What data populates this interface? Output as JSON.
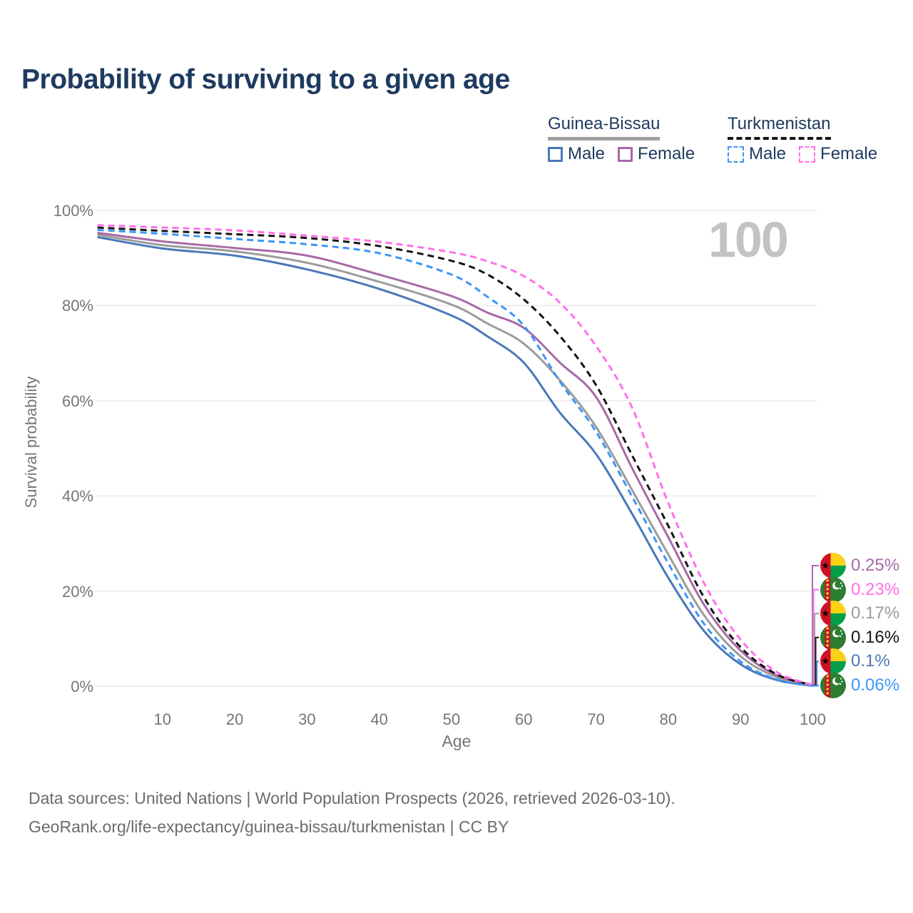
{
  "title": "Probability of surviving to a given age",
  "watermark": "100",
  "legend": {
    "groups": [
      {
        "name": "Guinea-Bissau",
        "line_style": "solid",
        "line_color": "#9e9e9e",
        "items": [
          {
            "label": "Male",
            "color": "#4a77b8",
            "dashed": false
          },
          {
            "label": "Female",
            "color": "#a869a6",
            "dashed": false
          }
        ]
      },
      {
        "name": "Turkmenistan",
        "line_style": "dashed",
        "line_color": "#141414",
        "items": [
          {
            "label": "Male",
            "color": "#3d96f8",
            "dashed": true
          },
          {
            "label": "Female",
            "color": "#ff70e9",
            "dashed": true
          }
        ]
      }
    ]
  },
  "chart_data": {
    "type": "line",
    "title": "Probability of surviving to a given age",
    "xlabel": "Age",
    "ylabel": "Survival probability",
    "xlim": [
      1,
      100
    ],
    "ylim": [
      0,
      100
    ],
    "grid": "horizontal",
    "x": [
      1,
      10,
      20,
      30,
      40,
      50,
      55,
      60,
      65,
      70,
      75,
      80,
      85,
      90,
      95,
      100
    ],
    "xticks": [
      {
        "value": 10,
        "label": "10"
      },
      {
        "value": 20,
        "label": "20"
      },
      {
        "value": 30,
        "label": "30"
      },
      {
        "value": 40,
        "label": "40"
      },
      {
        "value": 50,
        "label": "50"
      },
      {
        "value": 60,
        "label": "60"
      },
      {
        "value": 70,
        "label": "70"
      },
      {
        "value": 80,
        "label": "80"
      },
      {
        "value": 90,
        "label": "90"
      },
      {
        "value": 100,
        "label": "100"
      }
    ],
    "yticks": [
      {
        "value": 0,
        "label": "0%"
      },
      {
        "value": 20,
        "label": "20%"
      },
      {
        "value": 40,
        "label": "40%"
      },
      {
        "value": 60,
        "label": "60%"
      },
      {
        "value": 80,
        "label": "80%"
      },
      {
        "value": 100,
        "label": "100%"
      }
    ],
    "series": [
      {
        "name": "Guinea-Bissau Male",
        "country": "Guinea-Bissau",
        "sex": "Male",
        "flag": "guinea-bissau",
        "color": "#4a77b8",
        "dashed": false,
        "end_label": "0.1%",
        "values": [
          94.4,
          92.0,
          90.5,
          87.6,
          83.5,
          77.9,
          73.5,
          68.0,
          57.5,
          48.8,
          36.2,
          22.8,
          11.5,
          4.6,
          1.3,
          0.1
        ]
      },
      {
        "name": "Guinea-Bissau Both sexes",
        "country": "Guinea-Bissau",
        "sex": "Both",
        "flag": "guinea-bissau",
        "color": "#9c9c9c",
        "dashed": false,
        "end_label": "0.17%",
        "values": [
          94.9,
          92.7,
          91.4,
          89.0,
          85.0,
          80.2,
          76.2,
          72.0,
          64.3,
          54.5,
          41.2,
          27.7,
          14.8,
          6.3,
          1.9,
          0.17
        ]
      },
      {
        "name": "Guinea-Bissau Female",
        "country": "Guinea-Bissau",
        "sex": "Female",
        "flag": "guinea-bissau",
        "color": "#a869a6",
        "dashed": false,
        "end_label": "0.25%",
        "values": [
          95.3,
          93.5,
          92.1,
          90.5,
          86.5,
          82.0,
          78.5,
          75.3,
          68.0,
          60.8,
          45.8,
          31.3,
          17.0,
          7.5,
          2.3,
          0.25
        ]
      },
      {
        "name": "Turkmenistan Both sexes",
        "country": "Turkmenistan",
        "sex": "Both",
        "flag": "turkmenistan",
        "color": "#141414",
        "dashed": true,
        "end_label": "0.16%",
        "values": [
          96.4,
          95.7,
          95.0,
          94.2,
          92.5,
          89.4,
          86.5,
          81.3,
          73.6,
          63.3,
          48.5,
          33.7,
          18.5,
          8.2,
          2.5,
          0.16
        ]
      },
      {
        "name": "Turkmenistan Male",
        "country": "Turkmenistan",
        "sex": "Male",
        "flag": "turkmenistan",
        "color": "#3d96f8",
        "dashed": true,
        "end_label": "0.06%",
        "values": [
          95.9,
          95.1,
          94.0,
          92.9,
          91.0,
          86.5,
          81.8,
          75.8,
          64.0,
          53.5,
          39.8,
          25.8,
          13.0,
          5.2,
          1.4,
          0.06
        ]
      },
      {
        "name": "Turkmenistan Female",
        "country": "Turkmenistan",
        "sex": "Female",
        "flag": "turkmenistan",
        "color": "#ff70e9",
        "dashed": true,
        "end_label": "0.23%",
        "values": [
          96.9,
          96.4,
          95.8,
          94.7,
          93.4,
          91.2,
          89.3,
          86.2,
          80.6,
          71.5,
          58.5,
          38.5,
          21.5,
          9.8,
          3.0,
          0.23
        ]
      }
    ],
    "legend_position": "top-right",
    "annotations": {
      "hover_age": "100"
    }
  },
  "footer": {
    "line1": "Data sources: United Nations | World Population Prospects (2026, retrieved 2026-03-10).",
    "line2": "GeoRank.org/life-expectancy/guinea-bissau/turkmenistan | CC BY"
  }
}
